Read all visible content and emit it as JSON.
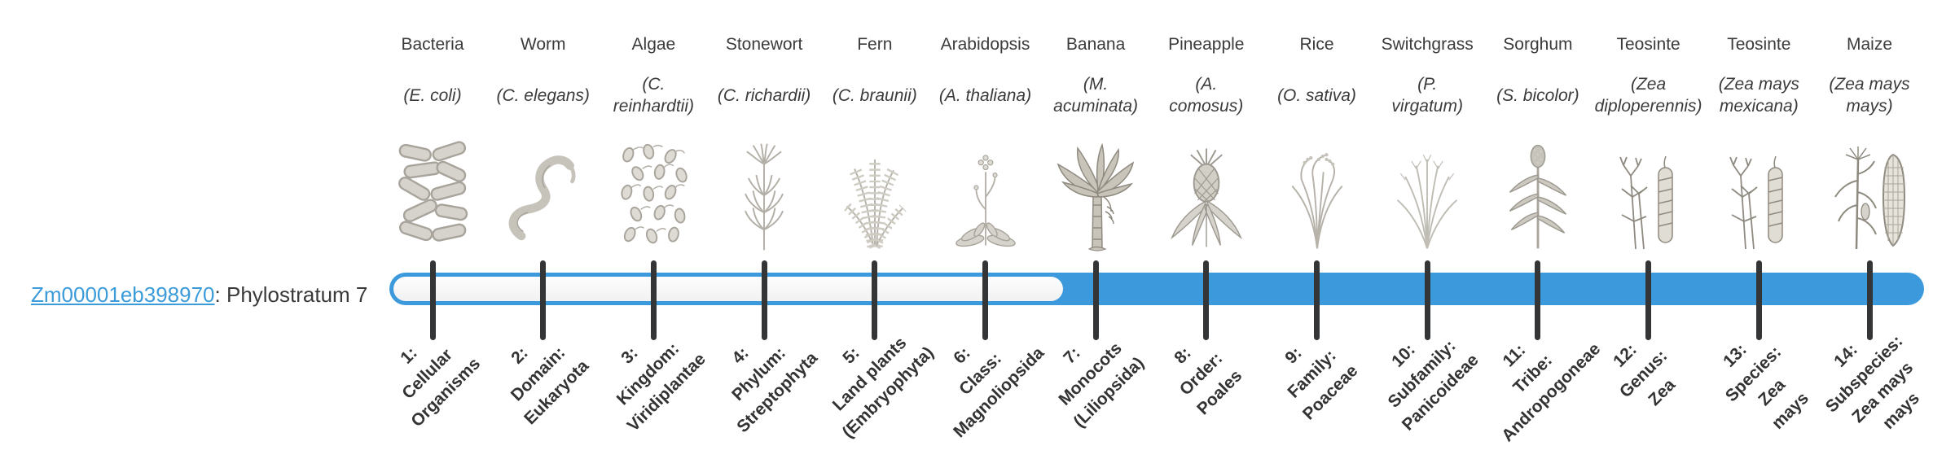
{
  "gene_label": {
    "id_text": "Zm00001eb398970",
    "rest_text": ": Phylostratum 7"
  },
  "phylostratum": {
    "current": 7,
    "total_strata": 14,
    "filled_from_stratum": 7
  },
  "colors": {
    "bar_fill_blue": "#3b99dc",
    "bar_track": "#f4f4f4",
    "tick_dark": "#333537",
    "link_blue": "#3c9bd9",
    "text_dark": "#3a3a3a"
  },
  "organisms": [
    {
      "name": "Bacteria",
      "sci": "(E. coli)",
      "icon": "bacteria-icon",
      "stratum": "1:\nCellular\nOrganisms"
    },
    {
      "name": "Worm",
      "sci": "(C. elegans)",
      "icon": "worm-icon",
      "stratum": "2:\nDomain:\nEukaryota"
    },
    {
      "name": "Algae",
      "sci": "(C.\nreinhardtii)",
      "icon": "algae-icon",
      "stratum": "3:\nKingdom:\nViridiplantae"
    },
    {
      "name": "Stonewort",
      "sci": "(C. richardii)",
      "icon": "stonewort-icon",
      "stratum": "4:\nPhylum:\nStreptophyta"
    },
    {
      "name": "Fern",
      "sci": "(C. braunii)",
      "icon": "fern-icon",
      "stratum": "5:\nLand plants\n(Embryophyta)"
    },
    {
      "name": "Arabidopsis",
      "sci": "(A. thaliana)",
      "icon": "arabidopsis-icon",
      "stratum": "6:\nClass:\nMagnoliopsida"
    },
    {
      "name": "Banana",
      "sci": "(M.\nacuminata)",
      "icon": "banana-icon",
      "stratum": "7:\nMonocots\n(Liliopsida)"
    },
    {
      "name": "Pineapple",
      "sci": "(A.\ncomosus)",
      "icon": "pineapple-icon",
      "stratum": "8:\nOrder:\nPoales"
    },
    {
      "name": "Rice",
      "sci": "(O. sativa)",
      "icon": "rice-icon",
      "stratum": "9:\nFamily:\nPoaceae"
    },
    {
      "name": "Switchgrass",
      "sci": "(P.\nvirgatum)",
      "icon": "switchgrass-icon",
      "stratum": "10:\nSubfamily:\nPanicoideae"
    },
    {
      "name": "Sorghum",
      "sci": "(S. bicolor)",
      "icon": "sorghum-icon",
      "stratum": "11:\nTribe:\nAndropogoneae"
    },
    {
      "name": "Teosinte",
      "sci": "(Zea\ndiploperennis)",
      "icon": "teosinte-icon",
      "stratum": "12:\nGenus:\nZea"
    },
    {
      "name": "Teosinte",
      "sci": "(Zea mays\nmexicana)",
      "icon": "teosinte-icon",
      "stratum": "13:\nSpecies:\nZea\nmays"
    },
    {
      "name": "Maize",
      "sci": "(Zea mays\nmays)",
      "icon": "maize-icon",
      "stratum": "14:\nSubspecies:\nZea mays\nmays"
    }
  ]
}
